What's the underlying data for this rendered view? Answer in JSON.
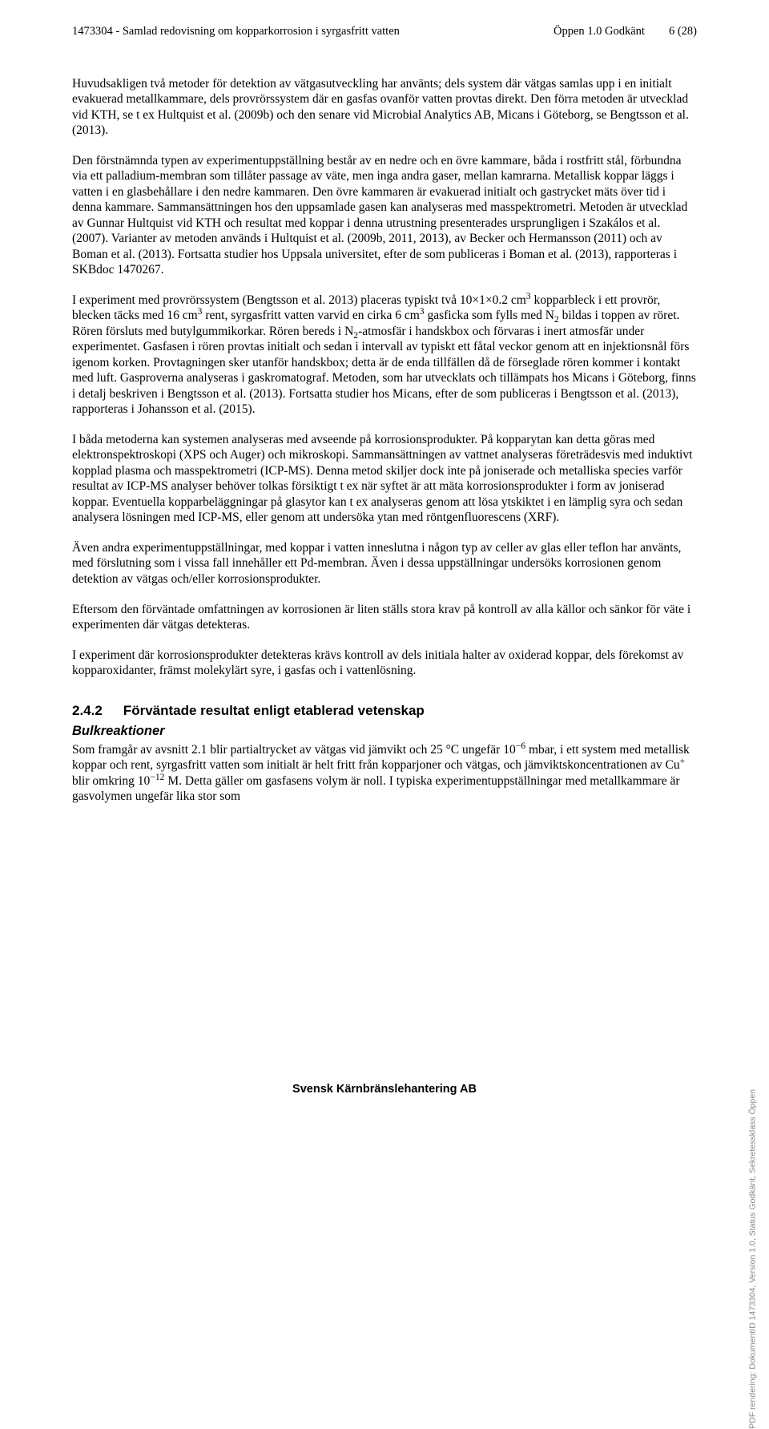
{
  "header": {
    "doc_id_title": "1473304 - Samlad redovisning om kopparkorrosion i syrgasfritt vatten",
    "status": "Öppen 1.0 Godkänt",
    "page_info": "6 (28)"
  },
  "paragraphs": {
    "p1": "Huvudsakligen två metoder för detektion av vätgasutveckling har använts; dels system där vätgas samlas upp i en initialt evakuerad metallkammare, dels provrörssystem där en gasfas ovanför vatten provtas direkt. Den förra metoden är utvecklad vid KTH, se t ex Hultquist et al. (2009b) och den senare vid Microbial Analytics AB, Micans i Göteborg, se Bengtsson et al. (2013).",
    "p2": "Den förstnämnda typen av experimentuppställning består av en nedre och en övre kammare, båda i rostfritt stål, förbundna via ett palladium-membran som tillåter passage av väte, men inga andra gaser, mellan kamrarna. Metallisk koppar läggs i vatten i en glasbehållare i den nedre kammaren. Den övre kammaren är evakuerad initialt och gastrycket mäts över tid i denna kammare. Sammansättningen hos den uppsamlade gasen kan analyseras med masspektrometri. Metoden är utvecklad av Gunnar Hultquist vid KTH och resultat med koppar i denna utrustning presenterades ursprungligen i Szakálos et al. (2007). Varianter av metoden används i Hultquist et al. (2009b, 2011, 2013), av Becker och Hermansson (2011) och av Boman et al. (2013). Fortsatta studier hos Uppsala universitet, efter de som publiceras i Boman et al. (2013), rapporteras i SKBdoc 1470267.",
    "p3_pre": "I experiment med provrörssystem (Bengtsson et al. 2013) placeras typiskt två 10×1×0.2 cm",
    "p3_mid1": " kopparbleck i ett provrör, blecken täcks med 16 cm",
    "p3_mid2": " rent, syrgasfritt vatten varvid en cirka 6 cm",
    "p3_mid3": " gasficka som fylls med N",
    "p3_mid4": " bildas i toppen av röret. Rören försluts med butylgummikorkar. Rören bereds i N",
    "p3_post": "-atmosfär i handskbox och förvaras i inert atmosfär under experimentet. Gasfasen i rören provtas initialt och sedan i intervall av typiskt ett fåtal veckor genom att en injektionsnål förs igenom korken. Provtagningen sker utanför handskbox; detta är de enda tillfällen då de förseglade rören kommer i kontakt med luft. Gasproverna analyseras i gaskromatograf. Metoden, som har utvecklats och tillämpats hos Micans i Göteborg, finns i detalj beskriven i Bengtsson et al. (2013). Fortsatta studier hos Micans, efter de som publiceras i Bengtsson et al. (2013), rapporteras i Johansson et al. (2015).",
    "p4": "I båda metoderna kan systemen analyseras med avseende på korrosionsprodukter. På kopparytan kan detta göras med elektronspektroskopi (XPS och Auger) och mikroskopi. Sammansättningen av vattnet analyseras företrädesvis med induktivt kopplad plasma och masspektrometri (ICP-MS). Denna metod skiljer dock inte på joniserade och metalliska species varför resultat av ICP-MS analyser behöver tolkas försiktigt t ex när syftet är att mäta korrosionsprodukter i form av joniserad koppar. Eventuella kopparbeläggningar på glasytor kan t ex analyseras genom att lösa ytskiktet i en lämplig syra och sedan analysera lösningen med ICP-MS, eller genom att undersöka ytan med röntgenfluorescens (XRF).",
    "p5": "Även andra experimentuppställningar, med koppar i vatten inneslutna i någon typ av celler av glas eller teflon har använts, med förslutning som i vissa fall innehåller ett Pd-membran. Även i dessa uppställningar undersöks korrosionen genom detektion av vätgas och/eller korrosionsprodukter.",
    "p6": "Eftersom den förväntade omfattningen av korrosionen är liten ställs stora krav på kontroll av alla källor och sänkor för väte i experimenten där vätgas detekteras.",
    "p7": "I experiment där korrosionsprodukter detekteras krävs kontroll av dels initiala halter av oxiderad koppar, dels förekomst av kopparoxidanter, främst molekylärt syre, i gasfas och i vattenlösning."
  },
  "section": {
    "number": "2.4.2",
    "title": "Förväntade resultat enligt etablerad vetenskap",
    "subtitle": "Bulkreaktioner"
  },
  "p8": {
    "pre": "Som framgår av avsnitt 2.1 blir partialtrycket av vätgas vid jämvikt och 25 °C ungefär 10",
    "exp1": "−6",
    "mid1": " mbar, i ett system med metallisk koppar och rent, syrgasfritt vatten som initialt är helt fritt från kopparjoner och vätgas, och jämviktskoncentrationen av Cu",
    "sup_plus": "+",
    "mid2": " blir omkring 10",
    "exp2": "−12",
    "post": " M. Detta gäller om gasfasens volym är noll. I typiska experimentuppställningar med metallkammare är gasvolymen ungefär lika stor som"
  },
  "footer": "Svensk Kärnbränslehantering AB",
  "side_note": "PDF rendering: DokumentID 1473304, Version 1.0, Status Godkänt, Sekretessklass Öppen",
  "sup": {
    "three_a": "3",
    "three_b": "3",
    "three_c": "3"
  },
  "sub": {
    "two_a": "2",
    "two_b": "2"
  }
}
